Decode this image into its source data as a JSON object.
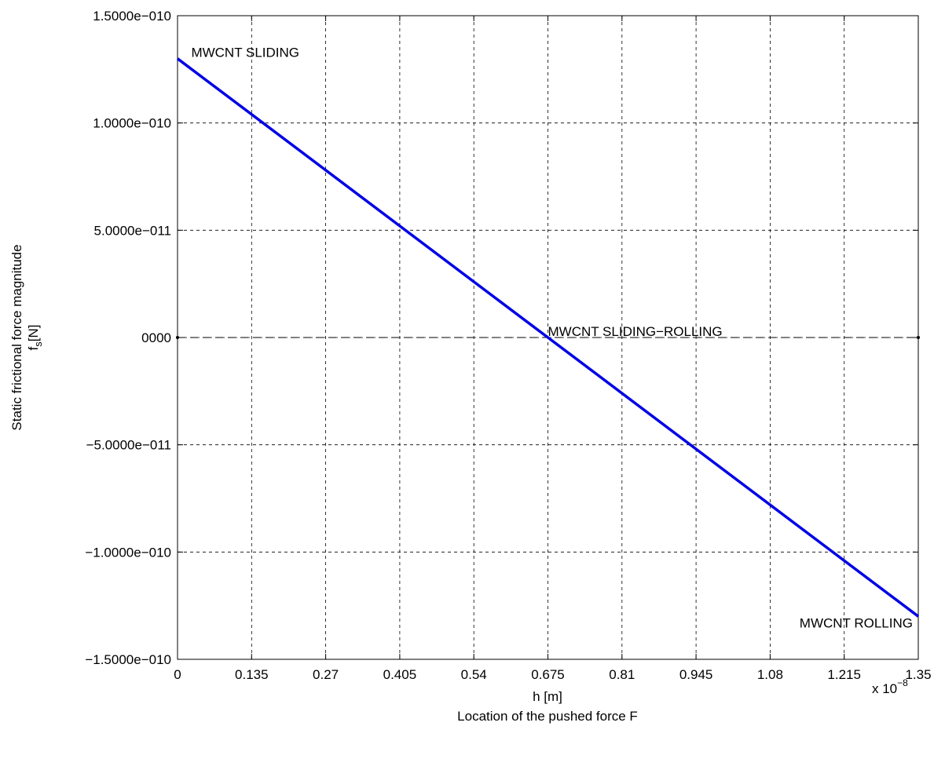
{
  "chart_data": {
    "type": "line",
    "xlabel": "h [m]",
    "xlabel2": "Location of the pushed force F",
    "ylabel_line1": "Static frictional force magnitude",
    "ylabel_line2_base": "f",
    "ylabel_line2_sub": "s",
    "ylabel_line2_rest": "[N]",
    "x_exponent_label": "x 10",
    "x_exponent_power": "−8",
    "xlim": [
      0,
      1.35
    ],
    "ylim": [
      -1.5e-10,
      1.5e-10
    ],
    "grid": true,
    "x_ticks": [
      0,
      0.135,
      0.27,
      0.405,
      0.54,
      0.675,
      0.81,
      0.945,
      1.08,
      1.215,
      1.35
    ],
    "x_tick_labels": [
      "0",
      "0.135",
      "0.27",
      "0.405",
      "0.54",
      "0.675",
      "0.81",
      "0.945",
      "1.08",
      "1.215",
      "1.35"
    ],
    "y_ticks": [
      -1.5e-10,
      -1e-10,
      -5e-11,
      0,
      5e-11,
      1e-10,
      1.5e-10
    ],
    "y_tick_labels": [
      "−1.5000e−010",
      "−1.0000e−010",
      "−5.0000e−011",
      "0000",
      "5.0000e−011",
      "1.0000e−010",
      "1.5000e−010"
    ],
    "series": [
      {
        "color": "#0000e6",
        "x": [
          0,
          1.35
        ],
        "y": [
          1.3e-10,
          -1.3e-10
        ]
      }
    ],
    "annotations": [
      {
        "text": "MWCNT SLIDING",
        "x": 0.025,
        "y": 1.33e-10,
        "anchor": "start"
      },
      {
        "text": "MWCNT SLIDING−ROLLING",
        "x": 0.675,
        "y": 3e-12,
        "anchor": "start"
      },
      {
        "text": "MWCNT  ROLLING",
        "x": 1.34,
        "y": -1.33e-10,
        "anchor": "end"
      }
    ]
  }
}
